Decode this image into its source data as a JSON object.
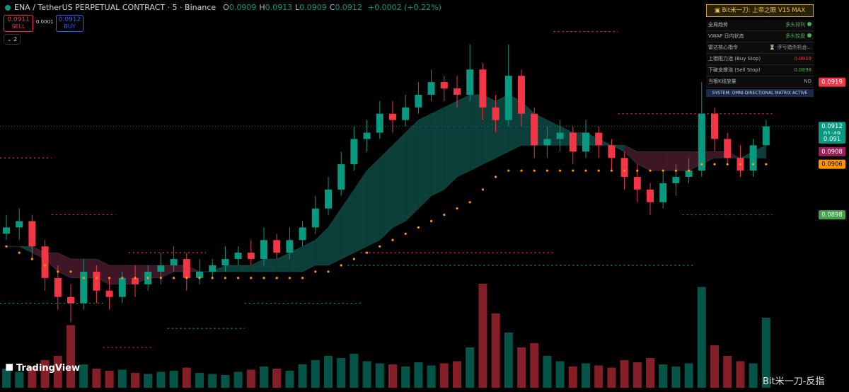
{
  "header": {
    "symbol": "ENA / TetherUS PERPETUAL CONTRACT · 5 · Binance",
    "ohlc": [
      {
        "key": "O",
        "value": 0.0909
      },
      {
        "key": "H",
        "value": 0.0913
      },
      {
        "key": "L",
        "value": 0.0909
      },
      {
        "key": "C",
        "value": 0.0912
      }
    ],
    "change": "+0.0002 (+0.22%)"
  },
  "order_panel": {
    "sell_price": 0.0911,
    "sell": "SELL",
    "spread": 0.0001,
    "buy_price": 0.0912,
    "buy": "BUY"
  },
  "indicator_count": 2,
  "info_panel": {
    "title": "Bit米一刀: 上帝之眼 V15 MAX",
    "rows": [
      {
        "label": "全局趋势",
        "value": "多头排列",
        "color": "#4caf50",
        "dot": true
      },
      {
        "label": "VWAP 日内状态",
        "value": "多头控盘",
        "color": "#4caf50",
        "dot": true
      },
      {
        "label": "雷达核心指令",
        "value": "⏳ 浮亏猎杀机会...",
        "color": "#9e9e9e"
      },
      {
        "label": "上猎阻力池 (Buy Stop)",
        "value": "0.0919",
        "color": "#f23645"
      },
      {
        "label": "下破支撑池 (Sell Stop)",
        "value": "0.0898",
        "color": "#4caf50"
      },
      {
        "label": "当根K线放量",
        "value": "NO",
        "color": "#9e9e9e"
      }
    ],
    "footer": "SYSTEM: OMNI-DIRECTIONAL MATRIX ACTIVE"
  },
  "watermarks": {
    "logo": "TradingView",
    "source": "Bit米一刀-反指"
  },
  "chart_data": {
    "type": "candlestick",
    "open": [
      0.0895,
      0.0896,
      0.0897,
      0.0893,
      0.0888,
      0.0885,
      0.0884,
      0.0889,
      0.0886,
      0.0885,
      0.0888,
      0.0887,
      0.0889,
      0.089,
      0.0891,
      0.0888,
      0.0889,
      0.089,
      0.0891,
      0.0892,
      0.0891,
      0.0894,
      0.0892,
      0.0894,
      0.0896,
      0.0899,
      0.0902,
      0.0906,
      0.091,
      0.0911,
      0.0914,
      0.0913,
      0.0915,
      0.0917,
      0.0919,
      0.0918,
      0.0917,
      0.0921,
      0.0915,
      0.0913,
      0.092,
      0.0914,
      0.0909,
      0.091,
      0.0911,
      0.0908,
      0.0911,
      0.0909,
      0.0907,
      0.0904,
      0.0902,
      0.09,
      0.0903,
      0.0904,
      0.0905,
      0.0914,
      0.091,
      0.0907,
      0.0905,
      0.0909
    ],
    "high": [
      0.0898,
      0.0899,
      0.0898,
      0.0894,
      0.089,
      0.0887,
      0.0891,
      0.089,
      0.0888,
      0.0889,
      0.089,
      0.089,
      0.0892,
      0.0893,
      0.0892,
      0.0891,
      0.0891,
      0.0893,
      0.0893,
      0.0894,
      0.0896,
      0.0895,
      0.0896,
      0.0897,
      0.0901,
      0.0904,
      0.0908,
      0.0912,
      0.0913,
      0.0916,
      0.0916,
      0.0917,
      0.0919,
      0.0921,
      0.092,
      0.092,
      0.0925,
      0.0922,
      0.0917,
      0.0925,
      0.0921,
      0.0915,
      0.0912,
      0.0913,
      0.0912,
      0.0913,
      0.0912,
      0.091,
      0.0908,
      0.0906,
      0.0903,
      0.0905,
      0.0906,
      0.0907,
      0.0919,
      0.0915,
      0.0911,
      0.0909,
      0.091,
      0.0913
    ],
    "low": [
      0.0894,
      0.0894,
      0.0891,
      0.0886,
      0.0883,
      0.0881,
      0.0883,
      0.0884,
      0.0883,
      0.0884,
      0.0885,
      0.0886,
      0.0887,
      0.0889,
      0.0886,
      0.0887,
      0.0888,
      0.0889,
      0.089,
      0.089,
      0.089,
      0.0891,
      0.0891,
      0.0893,
      0.0895,
      0.0898,
      0.0901,
      0.0905,
      0.0908,
      0.091,
      0.0911,
      0.0912,
      0.0914,
      0.0916,
      0.0916,
      0.0915,
      0.0916,
      0.0913,
      0.0911,
      0.0912,
      0.0912,
      0.0907,
      0.0907,
      0.0908,
      0.0906,
      0.0907,
      0.0907,
      0.0905,
      0.0902,
      0.09,
      0.0898,
      0.0899,
      0.0901,
      0.0903,
      0.0904,
      0.0908,
      0.0906,
      0.0904,
      0.0904,
      0.0909
    ],
    "close": [
      0.0896,
      0.0897,
      0.0893,
      0.0888,
      0.0885,
      0.0884,
      0.0889,
      0.0886,
      0.0885,
      0.0888,
      0.0887,
      0.0889,
      0.089,
      0.0891,
      0.0888,
      0.0889,
      0.089,
      0.0891,
      0.0892,
      0.0891,
      0.0894,
      0.0892,
      0.0894,
      0.0896,
      0.0899,
      0.0902,
      0.0906,
      0.091,
      0.0911,
      0.0914,
      0.0913,
      0.0915,
      0.0917,
      0.0919,
      0.0918,
      0.0917,
      0.0921,
      0.0915,
      0.0913,
      0.092,
      0.0914,
      0.0909,
      0.091,
      0.0911,
      0.0908,
      0.0911,
      0.0909,
      0.0907,
      0.0904,
      0.0902,
      0.09,
      0.0903,
      0.0904,
      0.0905,
      0.0914,
      0.091,
      0.0907,
      0.0905,
      0.0909,
      0.0912
    ],
    "volume": [
      180,
      150,
      200,
      260,
      300,
      590,
      220,
      180,
      160,
      170,
      140,
      130,
      150,
      160,
      190,
      140,
      130,
      120,
      150,
      170,
      200,
      180,
      160,
      220,
      260,
      300,
      280,
      320,
      250,
      230,
      220,
      200,
      240,
      210,
      230,
      250,
      380,
      980,
      700,
      520,
      380,
      420,
      300,
      250,
      200,
      230,
      210,
      190,
      260,
      240,
      280,
      220,
      200,
      230,
      950,
      400,
      300,
      250,
      230,
      660
    ],
    "volume_ylim": [
      0,
      1000
    ],
    "trail": [
      0.0893,
      0.0892,
      0.0891,
      0.089,
      0.0889,
      0.0889,
      0.0888,
      0.0888,
      0.0888,
      0.0888,
      0.0888,
      0.0888,
      0.0888,
      0.0888,
      0.0888,
      0.0888,
      0.0888,
      0.0888,
      0.0888,
      0.0888,
      0.0888,
      0.0888,
      0.0888,
      0.0888,
      0.0889,
      0.0889,
      0.089,
      0.0891,
      0.0892,
      0.0893,
      0.0894,
      0.0895,
      0.0896,
      0.0897,
      0.0898,
      0.0899,
      0.09,
      0.0902,
      0.0904,
      0.0905,
      0.0905,
      0.0905,
      0.0905,
      0.0905,
      0.0905,
      0.0905,
      0.0905,
      0.0905,
      0.0905,
      0.0905,
      0.0905,
      0.0905,
      0.0905,
      0.0905,
      0.0906,
      0.0906,
      0.0906,
      0.0906,
      0.0906,
      0.0906
    ],
    "cloud_fast": [
      0.0893,
      0.0893,
      0.0892,
      0.0891,
      0.0889,
      0.0888,
      0.0888,
      0.0888,
      0.0887,
      0.0887,
      0.0887,
      0.0888,
      0.0888,
      0.0889,
      0.0889,
      0.0889,
      0.0889,
      0.089,
      0.089,
      0.089,
      0.0891,
      0.0891,
      0.0892,
      0.0893,
      0.0894,
      0.0896,
      0.0899,
      0.0902,
      0.0905,
      0.0907,
      0.0909,
      0.0911,
      0.0913,
      0.0914,
      0.0915,
      0.0916,
      0.0917,
      0.0917,
      0.0916,
      0.0917,
      0.0916,
      0.0914,
      0.0913,
      0.0912,
      0.0911,
      0.0911,
      0.091,
      0.0909,
      0.0908,
      0.0906,
      0.0905,
      0.0905,
      0.0905,
      0.0905,
      0.0906,
      0.0907,
      0.0907,
      0.0907,
      0.0908,
      0.0909
    ],
    "cloud_slow": [
      0.0893,
      0.0893,
      0.0893,
      0.0892,
      0.0892,
      0.0891,
      0.0891,
      0.0891,
      0.089,
      0.089,
      0.089,
      0.089,
      0.089,
      0.089,
      0.089,
      0.0889,
      0.0889,
      0.0889,
      0.0889,
      0.0889,
      0.0889,
      0.0889,
      0.0889,
      0.0889,
      0.089,
      0.089,
      0.0891,
      0.0892,
      0.0893,
      0.0894,
      0.0896,
      0.0897,
      0.0899,
      0.0901,
      0.0902,
      0.0904,
      0.0905,
      0.0906,
      0.0907,
      0.0908,
      0.0909,
      0.0909,
      0.0909,
      0.0909,
      0.0909,
      0.0909,
      0.0909,
      0.0909,
      0.0909,
      0.0908,
      0.0908,
      0.0908,
      0.0908,
      0.0908,
      0.0908,
      0.0908,
      0.0908,
      0.0907,
      0.0907,
      0.0907
    ],
    "ylim": [
      0.0876,
      0.0932
    ],
    "colors": {
      "up": "#089981",
      "down": "#f23645",
      "trail": "#ff9800",
      "cloud_up": "#0e4a44",
      "cloud_down": "#4a1a2c"
    },
    "levels": [
      {
        "price": 0.0927,
        "from": 43,
        "to": 47,
        "color": "#f23645"
      },
      {
        "price": 0.0914,
        "from": 48,
        "to": 59,
        "color": "#f23645"
      },
      {
        "price": 0.0898,
        "from": 53,
        "to": 59,
        "color": "#089981"
      },
      {
        "price": 0.0907,
        "from": 0,
        "to": 3,
        "color": "#f23645"
      },
      {
        "price": 0.0898,
        "from": 4,
        "to": 8,
        "color": "#f23645"
      },
      {
        "price": 0.0892,
        "from": 10,
        "to": 15,
        "color": "#f23645"
      },
      {
        "price": 0.0892,
        "from": 28,
        "to": 42,
        "color": "#f23645"
      },
      {
        "price": 0.0884,
        "from": 0,
        "to": 7,
        "color": "#089981"
      },
      {
        "price": 0.0884,
        "from": 19,
        "to": 27,
        "color": "#089981"
      },
      {
        "price": 0.089,
        "from": 27,
        "to": 53,
        "color": "#089981"
      },
      {
        "price": 0.0877,
        "from": 8,
        "to": 11,
        "color": "#f23645"
      },
      {
        "price": 0.088,
        "from": 13,
        "to": 18,
        "color": "#089981"
      }
    ],
    "price_tags": [
      {
        "value": 0.0919,
        "color": "#f23645"
      },
      {
        "value": 0.0912,
        "color": "#089981",
        "countdown": "01:49"
      },
      {
        "value": 0.091,
        "color": "#089981"
      },
      {
        "value": 0.0908,
        "color": "#9c1f5a"
      },
      {
        "value": 0.0906,
        "color": "#ff9800"
      },
      {
        "value": 0.0898,
        "color": "#43a047"
      }
    ]
  }
}
